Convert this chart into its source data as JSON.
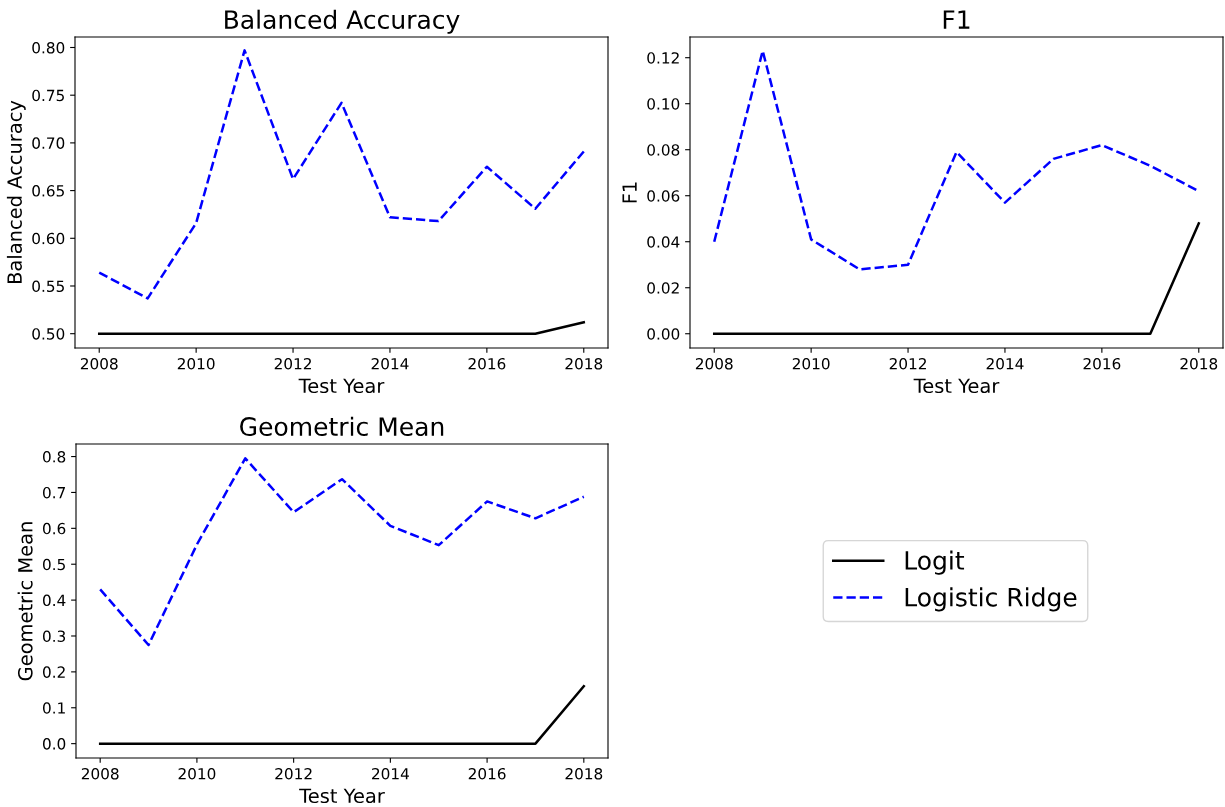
{
  "chart_data": [
    {
      "type": "line",
      "title": "Balanced Accuracy",
      "xlabel": "Test Year",
      "ylabel": "Balanced Accuracy",
      "x": [
        2008,
        2009,
        2010,
        2011,
        2012,
        2013,
        2014,
        2015,
        2016,
        2017,
        2018
      ],
      "xlim": [
        2007.5,
        2018.5
      ],
      "xticks": [
        2008,
        2010,
        2012,
        2014,
        2016,
        2018
      ],
      "ylim": [
        0.485,
        0.811
      ],
      "yticks": [
        {
          "value": 0.5,
          "label": "0.50"
        },
        {
          "value": 0.55,
          "label": "0.55"
        },
        {
          "value": 0.6,
          "label": "0.60"
        },
        {
          "value": 0.65,
          "label": "0.65"
        },
        {
          "value": 0.7,
          "label": "0.70"
        },
        {
          "value": 0.75,
          "label": "0.75"
        },
        {
          "value": 0.8,
          "label": "0.80"
        }
      ],
      "grid": false,
      "series": [
        {
          "color": "#000000",
          "line_style": "solid",
          "values": [
            0.5,
            0.5,
            0.5,
            0.5,
            0.5,
            0.5,
            0.5,
            0.5,
            0.5,
            0.5,
            0.512
          ]
        },
        {
          "color": "#0000ff",
          "line_style": "dashed",
          "values": [
            0.564,
            0.537,
            0.616,
            0.797,
            0.662,
            0.742,
            0.622,
            0.618,
            0.675,
            0.631,
            0.691
          ]
        }
      ]
    },
    {
      "type": "line",
      "title": "F1",
      "xlabel": "Test Year",
      "ylabel": "F1",
      "x": [
        2008,
        2009,
        2010,
        2011,
        2012,
        2013,
        2014,
        2015,
        2016,
        2017,
        2018
      ],
      "xlim": [
        2007.5,
        2018.5
      ],
      "xticks": [
        2008,
        2010,
        2012,
        2014,
        2016,
        2018
      ],
      "ylim": [
        -0.0062,
        0.129
      ],
      "yticks": [
        {
          "value": 0,
          "label": "0.00"
        },
        {
          "value": 0.02,
          "label": "0.02"
        },
        {
          "value": 0.04,
          "label": "0.04"
        },
        {
          "value": 0.06,
          "label": "0.06"
        },
        {
          "value": 0.08,
          "label": "0.08"
        },
        {
          "value": 0.1,
          "label": "0.10"
        },
        {
          "value": 0.12,
          "label": "0.12"
        }
      ],
      "grid": false,
      "series": [
        {
          "color": "#000000",
          "line_style": "solid",
          "values": [
            0,
            0,
            0,
            0,
            0,
            0,
            0,
            0,
            0,
            0,
            0.048
          ]
        },
        {
          "color": "#0000ff",
          "line_style": "dashed",
          "values": [
            0.04,
            0.123,
            0.041,
            0.028,
            0.03,
            0.079,
            0.057,
            0.076,
            0.082,
            0.073,
            0.062
          ]
        }
      ]
    },
    {
      "type": "line",
      "title": "Geometric Mean",
      "xlabel": "Test Year",
      "ylabel": "Geometric Mean",
      "x": [
        2008,
        2009,
        2010,
        2011,
        2012,
        2013,
        2014,
        2015,
        2016,
        2017,
        2018
      ],
      "xlim": [
        2007.5,
        2018.5
      ],
      "xticks": [
        2008,
        2010,
        2012,
        2014,
        2016,
        2018
      ],
      "ylim": [
        -0.04,
        0.835
      ],
      "yticks": [
        {
          "value": 0,
          "label": "0.0"
        },
        {
          "value": 0.1,
          "label": "0.1"
        },
        {
          "value": 0.2,
          "label": "0.2"
        },
        {
          "value": 0.3,
          "label": "0.3"
        },
        {
          "value": 0.4,
          "label": "0.4"
        },
        {
          "value": 0.5,
          "label": "0.5"
        },
        {
          "value": 0.6,
          "label": "0.6"
        },
        {
          "value": 0.7,
          "label": "0.7"
        },
        {
          "value": 0.8,
          "label": "0.8"
        }
      ],
      "grid": false,
      "legend": "right",
      "series": [
        {
          "name": "Logit",
          "color": "#000000",
          "line_style": "solid",
          "values": [
            0,
            0,
            0,
            0,
            0,
            0,
            0,
            0,
            0,
            0,
            0.16
          ]
        },
        {
          "name": "Logistic Ridge",
          "color": "#0000ff",
          "line_style": "dashed",
          "values": [
            0.43,
            0.275,
            0.555,
            0.795,
            0.645,
            0.737,
            0.607,
            0.553,
            0.675,
            0.628,
            0.688
          ]
        }
      ]
    }
  ]
}
